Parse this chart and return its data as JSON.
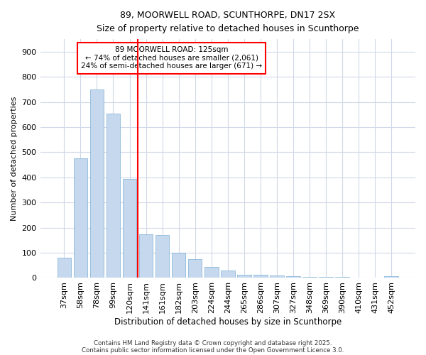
{
  "title_line1": "89, MOORWELL ROAD, SCUNTHORPE, DN17 2SX",
  "title_line2": "Size of property relative to detached houses in Scunthorpe",
  "xlabel": "Distribution of detached houses by size in Scunthorpe",
  "ylabel": "Number of detached properties",
  "categories": [
    "37sqm",
    "58sqm",
    "78sqm",
    "99sqm",
    "120sqm",
    "141sqm",
    "161sqm",
    "182sqm",
    "203sqm",
    "224sqm",
    "244sqm",
    "265sqm",
    "286sqm",
    "307sqm",
    "327sqm",
    "348sqm",
    "369sqm",
    "390sqm",
    "410sqm",
    "431sqm",
    "452sqm"
  ],
  "values": [
    80,
    475,
    750,
    655,
    395,
    173,
    170,
    100,
    75,
    45,
    30,
    13,
    12,
    10,
    7,
    5,
    4,
    3,
    2,
    1,
    7
  ],
  "bar_color": "#c5d8ee",
  "bar_edge_color": "#7aafd4",
  "vline_color": "red",
  "vline_x": 4.5,
  "annotation_title": "89 MOORWELL ROAD: 125sqm",
  "annotation_line1": "← 74% of detached houses are smaller (2,061)",
  "annotation_line2": "24% of semi-detached houses are larger (671) →",
  "annotation_box_color": "white",
  "annotation_edge_color": "red",
  "ylim": [
    0,
    950
  ],
  "yticks": [
    0,
    100,
    200,
    300,
    400,
    500,
    600,
    700,
    800,
    900
  ],
  "bg_color": "#ffffff",
  "grid_color": "#d0d8e8",
  "footer_line1": "Contains HM Land Registry data © Crown copyright and database right 2025.",
  "footer_line2": "Contains public sector information licensed under the Open Government Licence 3.0."
}
